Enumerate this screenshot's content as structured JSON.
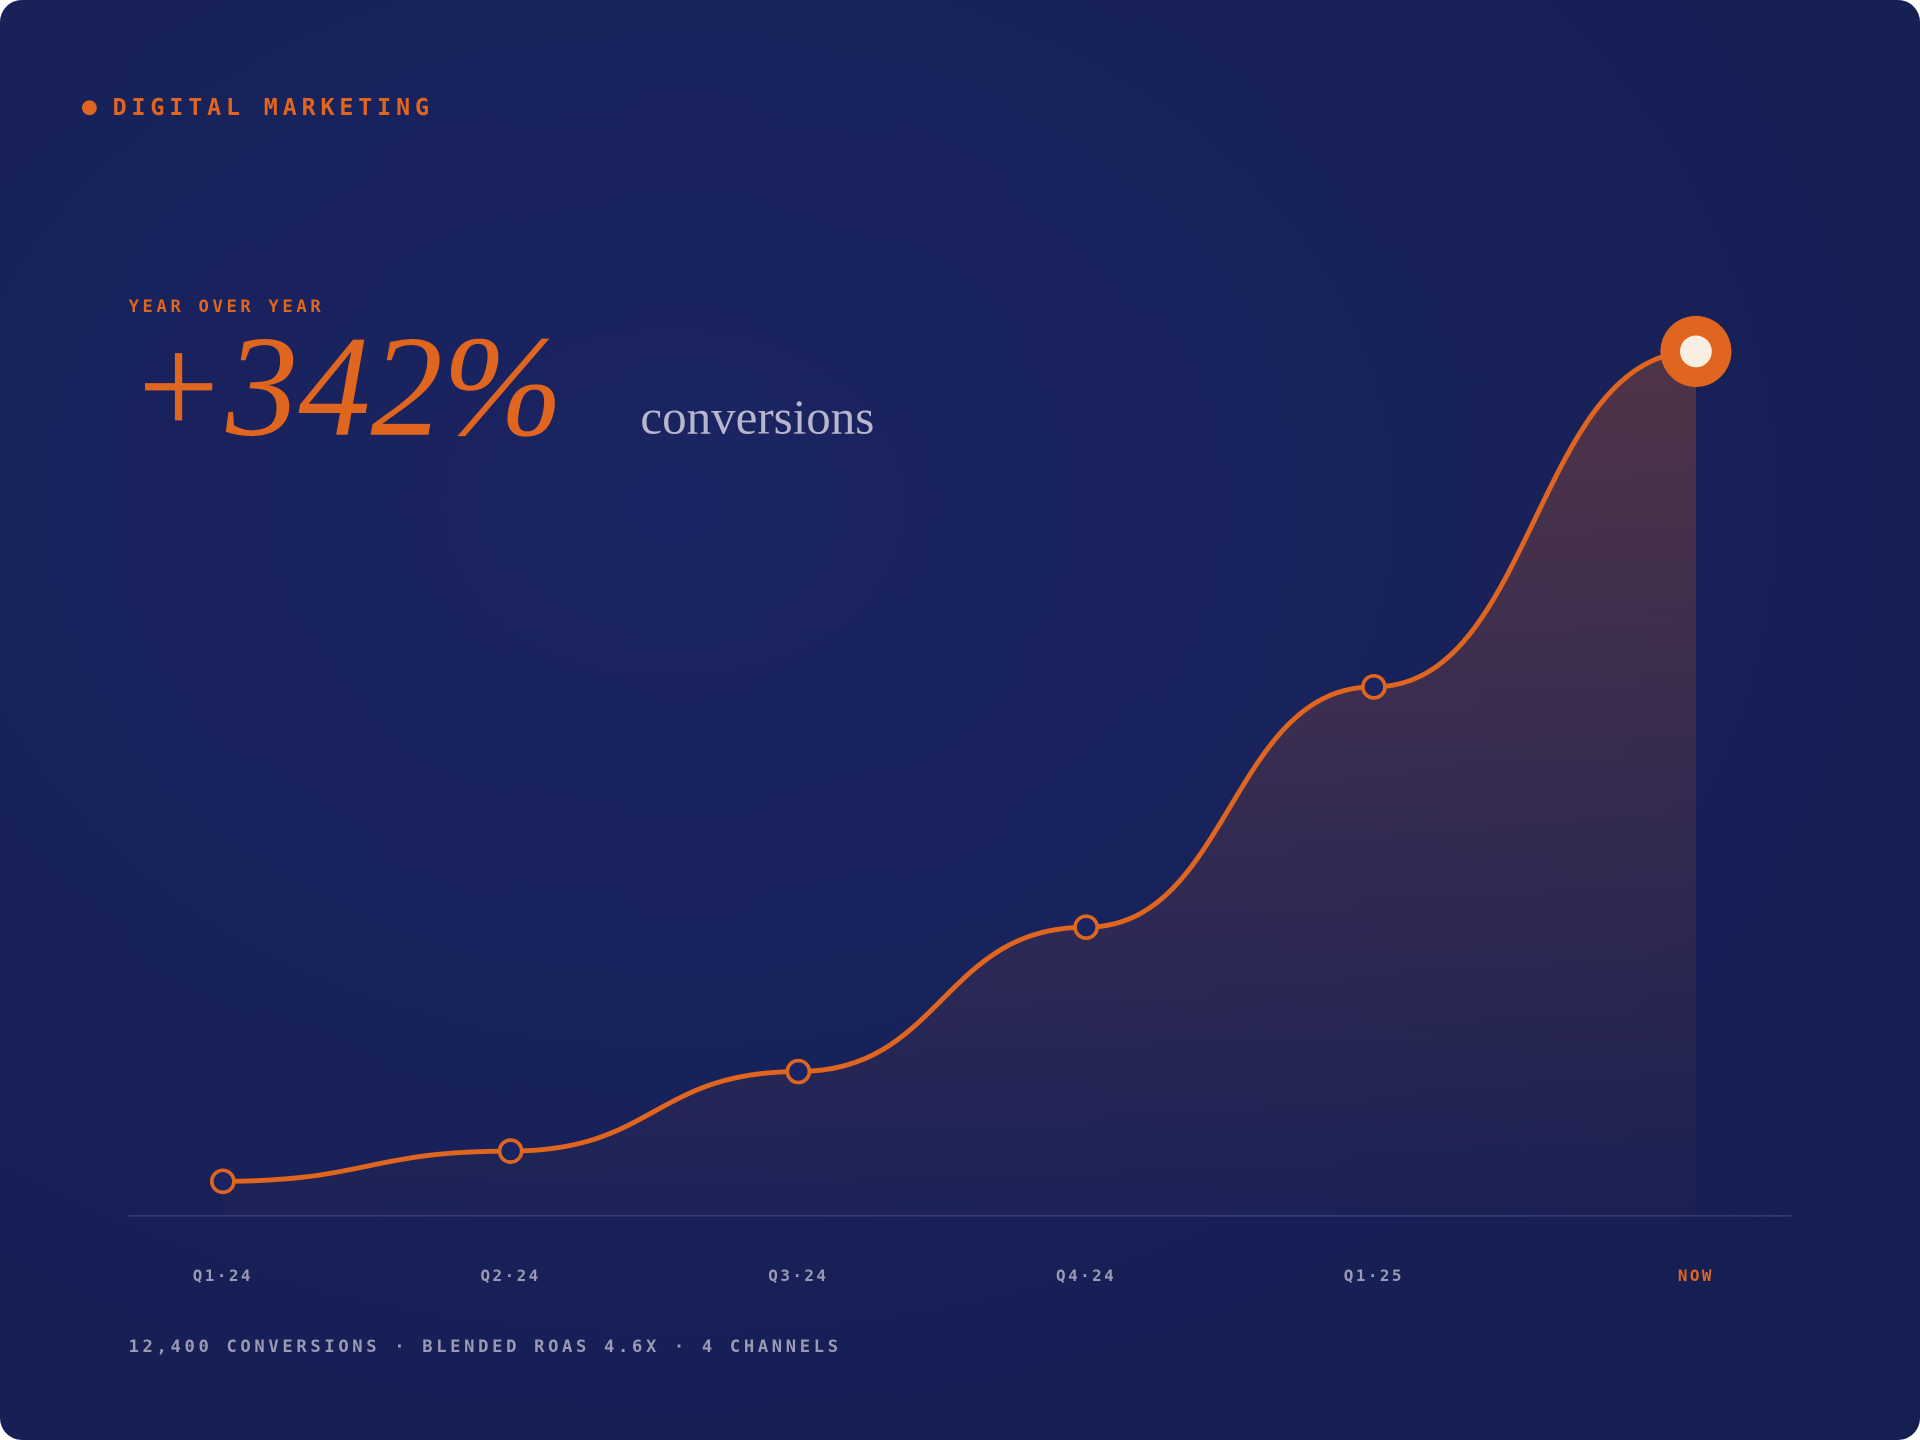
{
  "chart_data": {
    "type": "line",
    "title": "DIGITAL MARKETING",
    "kicker": "YEAR OVER YEAR",
    "headline": "+342%",
    "headline_unit": "conversions",
    "footnote": "12,400 CONVERSIONS · BLENDED ROAS 4.6X · 4 CHANNELS",
    "categories": [
      "Q1·24",
      "Q2·24",
      "Q3·24",
      "Q4·24",
      "Q1·25",
      "NOW"
    ],
    "values": [
      4,
      7.5,
      16.7,
      33.4,
      61.2,
      100
    ],
    "color": "#e0651f",
    "ylim": [
      0,
      100
    ]
  }
}
